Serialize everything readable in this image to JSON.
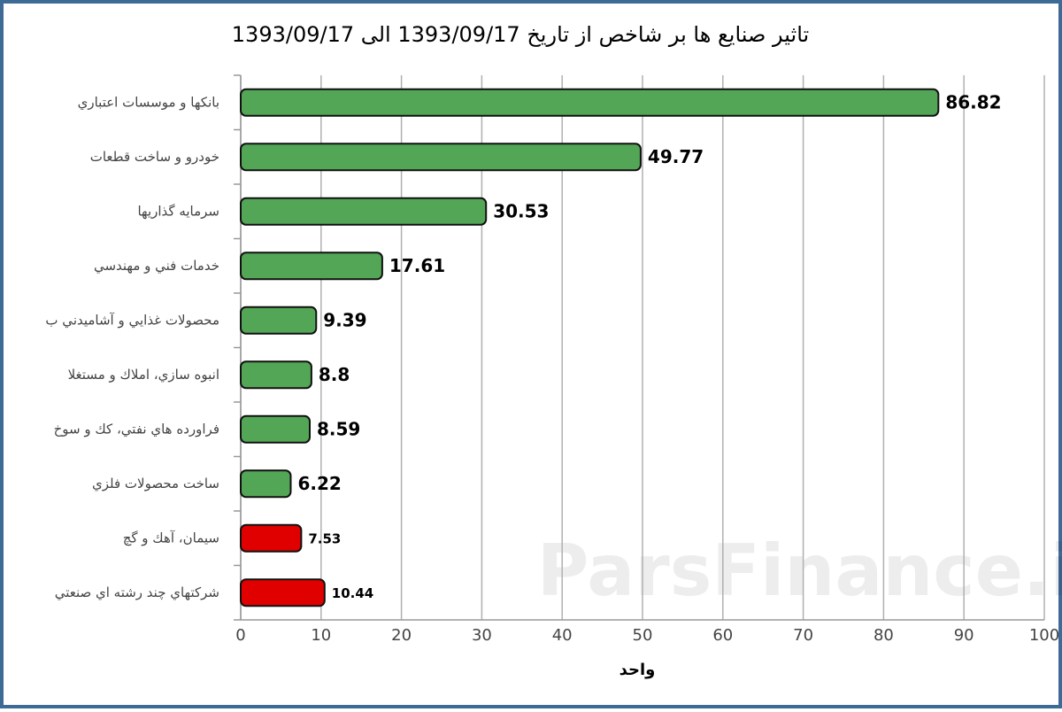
{
  "chart_data": {
    "type": "bar",
    "orientation": "horizontal",
    "title": "تاثیر صنایع ها بر شاخص از تاریخ 1393/09/17 الی 1393/09/17",
    "watermark": "ParsFinance.ir",
    "categories": [
      "بانکها و موسسات اعتباري",
      "خودرو و ساخت قطعات",
      "سرمايه گذاريها",
      "خدمات فني و مهندسي",
      "محصولات غذايي و آشاميدني ب",
      "انبوه سازي، املاك و مستغلا",
      "فراورده هاي نفتي، كك و سوخ",
      "ساخت محصولات فلزي",
      "سيمان، آهك و گچ",
      "شركتهاي چند رشته اي صنعتي"
    ],
    "values": [
      86.82,
      49.77,
      30.53,
      17.61,
      9.39,
      8.8,
      8.59,
      6.22,
      7.53,
      10.44
    ],
    "colors": [
      "#52a655",
      "#52a655",
      "#52a655",
      "#52a655",
      "#52a655",
      "#52a655",
      "#52a655",
      "#52a655",
      "#e00000",
      "#e00000"
    ],
    "xlabel": "واحد",
    "xlim": [
      0,
      100
    ],
    "xticks": [
      0,
      10,
      20,
      30,
      40,
      50,
      60,
      70,
      80,
      90,
      100
    ],
    "grid": true
  }
}
